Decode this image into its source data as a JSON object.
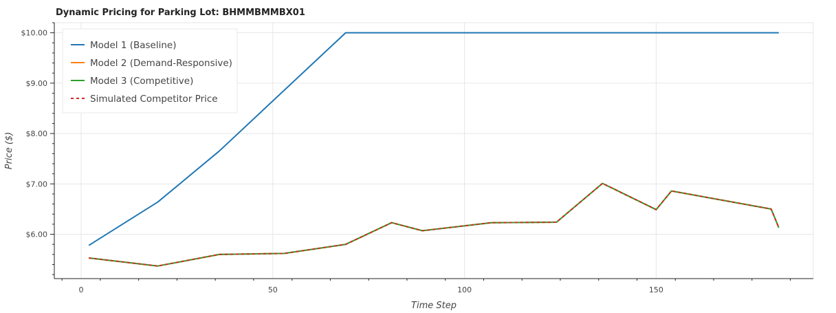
{
  "chart_data": {
    "type": "line",
    "title": "Dynamic Pricing for Parking Lot: BHMMBMMBX01",
    "xlabel": "Time Step",
    "ylabel": "Price ($)",
    "xlim": [
      -7,
      191
    ],
    "ylim": [
      5.12,
      10.2
    ],
    "x_ticks": [
      0,
      50,
      100,
      150
    ],
    "y_ticks": [
      6,
      7,
      8,
      9,
      10
    ],
    "y_tick_labels": [
      "$6.00",
      "$7.00",
      "$8.00",
      "$9.00",
      "$10.00"
    ],
    "grid": true,
    "legend_position": "top-left",
    "series": [
      {
        "name": "Model 1 (Baseline)",
        "color": "#1f77b4",
        "style": "solid",
        "x": [
          2,
          20,
          36,
          69,
          182
        ],
        "y": [
          5.78,
          6.64,
          7.65,
          10.0,
          10.0
        ]
      },
      {
        "name": "Model 2 (Demand-Responsive)",
        "color": "#ff7f0e",
        "style": "solid",
        "x": [
          2,
          20,
          36,
          53,
          69,
          81,
          89,
          107,
          124,
          136,
          150,
          154,
          180,
          182
        ],
        "y": [
          5.53,
          5.37,
          5.6,
          5.62,
          5.8,
          6.23,
          6.07,
          6.23,
          6.24,
          7.01,
          6.49,
          6.86,
          6.5,
          6.13
        ]
      },
      {
        "name": "Model 3 (Competitive)",
        "color": "#2ca02c",
        "style": "solid",
        "x": [
          2,
          20,
          36,
          53,
          69,
          81,
          89,
          107,
          124,
          136,
          150,
          154,
          180,
          182
        ],
        "y": [
          5.53,
          5.37,
          5.6,
          5.62,
          5.8,
          6.23,
          6.07,
          6.23,
          6.24,
          7.01,
          6.49,
          6.86,
          6.5,
          6.13
        ]
      },
      {
        "name": "Simulated Competitor Price",
        "color": "#d62728",
        "style": "dashed",
        "x": [
          2,
          20,
          36,
          53,
          69,
          81,
          89,
          107,
          124,
          136,
          150,
          154,
          180,
          182
        ],
        "y": [
          5.53,
          5.37,
          5.6,
          5.62,
          5.8,
          6.23,
          6.07,
          6.23,
          6.24,
          7.01,
          6.49,
          6.86,
          6.5,
          6.13
        ]
      }
    ]
  }
}
